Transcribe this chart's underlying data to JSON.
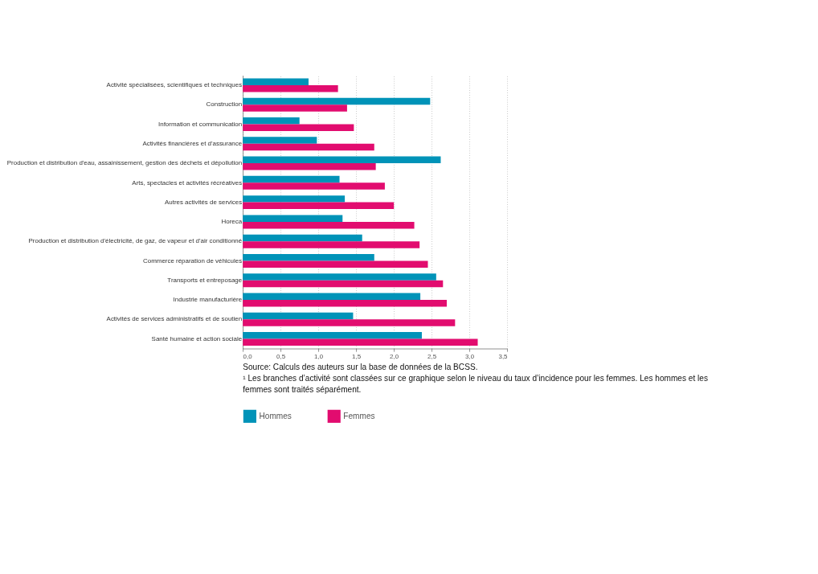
{
  "chart_data": {
    "type": "bar",
    "orientation": "horizontal",
    "categories": [
      "Activité spécialisées, scientifiques et techniques",
      "Construction",
      "Information et communication",
      "Activités financières et d'assurance",
      "Production et distribution d'eau, assainissement, gestion des déchets et dépollution",
      "Arts, spectacles et activités récréatives",
      "Autres activités de services",
      "Horeca",
      "Production et distribution d'électricité, de gaz, de vapeur et d'air conditionné",
      "Commerce réparation de véhicules",
      "Transports et entreposage",
      "Industrie manufacturière",
      "Activités de services administratifs et de soutien",
      "Santé humaine et action sociale"
    ],
    "series": [
      {
        "name": "Hommes",
        "color": "#0093b8",
        "values": [
          0.87,
          2.48,
          0.75,
          0.98,
          2.62,
          1.28,
          1.35,
          1.32,
          1.58,
          1.74,
          2.56,
          2.35,
          1.46,
          2.37
        ]
      },
      {
        "name": "Femmes",
        "color": "#e20c6f",
        "values": [
          1.26,
          1.38,
          1.47,
          1.74,
          1.76,
          1.88,
          2.0,
          2.27,
          2.34,
          2.45,
          2.65,
          2.7,
          2.81,
          3.11
        ]
      }
    ],
    "xlim": [
      0,
      3.5
    ],
    "xticks": [
      {
        "value": 0,
        "label": "0,0"
      },
      {
        "value": 0.5,
        "label": "0,5"
      },
      {
        "value": 1,
        "label": "1,0"
      },
      {
        "value": 1.5,
        "label": "1,5"
      },
      {
        "value": 2,
        "label": "2,0"
      },
      {
        "value": 2.5,
        "label": "2,5"
      },
      {
        "value": 3,
        "label": "3,0"
      },
      {
        "value": 3.5,
        "label": "3,5"
      }
    ],
    "grid": "x",
    "legend": "bottom",
    "annotations": [
      "Source: Calculs des auteurs sur la base de données de la BCSS.",
      "¹ Les branches d’activité sont classées sur ce graphique selon le niveau du taux d’incidence pour les femmes. Les hommes et les femmes sont traités séparément."
    ]
  }
}
